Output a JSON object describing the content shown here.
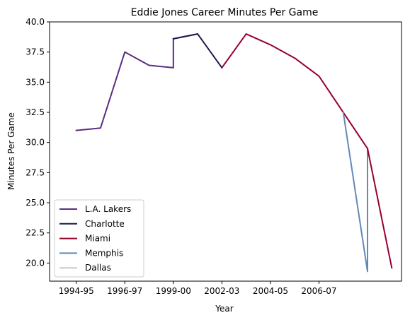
{
  "chart_data": {
    "type": "line",
    "title": "Eddie Jones  Career Minutes Per Game",
    "xlabel": "Year",
    "ylabel": "Minutes Per Game",
    "xlim": [
      1993.4,
      2007.9
    ],
    "ylim": [
      18.5,
      40.0
    ],
    "x_ticks": [
      {
        "value": 1994.5,
        "label": "1994-95"
      },
      {
        "value": 1996.5,
        "label": "1996-97"
      },
      {
        "value": 1998.5,
        "label": "1999-00"
      },
      {
        "value": 2000.5,
        "label": "2002-03"
      },
      {
        "value": 2002.5,
        "label": "2004-05"
      },
      {
        "value": 2004.5,
        "label": "2006-07"
      }
    ],
    "y_ticks": [
      20.0,
      22.5,
      25.0,
      27.5,
      30.0,
      32.5,
      35.0,
      37.5,
      40.0
    ],
    "y_tick_labels": [
      "20.0",
      "22.5",
      "25.0",
      "27.5",
      "30.0",
      "32.5",
      "35.0",
      "37.5",
      "40.0"
    ],
    "grid": false,
    "legend_position": "lower-left",
    "series": [
      {
        "name": "L.A. Lakers",
        "color": "#5b2d82",
        "x": [
          1994.5,
          1995.5,
          1996.5,
          1997.5,
          1998.5,
          1998.5,
          1999.5
        ],
        "y": [
          31.0,
          31.2,
          37.5,
          36.4,
          36.2,
          38.6,
          39.0
        ]
      },
      {
        "name": "Charlotte",
        "color": "#1d1a4f",
        "x": [
          1998.5,
          1999.5,
          2000.5
        ],
        "y": [
          38.6,
          39.0,
          36.2
        ]
      },
      {
        "name": "Miami",
        "color": "#98002e",
        "x": [
          2000.5,
          2001.5,
          2002.5,
          2003.5,
          2004.5,
          2005.5,
          2006.5
        ],
        "y": [
          36.2,
          39.0,
          38.1,
          37.0,
          35.5,
          32.5,
          29.5
        ]
      },
      {
        "name": "Memphis",
        "color": "#6189b9",
        "x": [
          2005.5,
          2006.5,
          2006.5
        ],
        "y": [
          32.5,
          19.3,
          29.5
        ]
      },
      {
        "name": "Miami",
        "color": "#98002e",
        "x": [
          2006.5,
          2007.5
        ],
        "y": [
          29.5,
          19.6
        ]
      }
    ],
    "legend": [
      {
        "name": "L.A. Lakers",
        "color": "#5b2d82"
      },
      {
        "name": "Charlotte",
        "color": "#1d1a4f"
      },
      {
        "name": "Miami",
        "color": "#98002e"
      },
      {
        "name": "Memphis",
        "color": "#6189b9"
      },
      {
        "name": "Dallas",
        "color": "#c4ced4"
      }
    ]
  }
}
